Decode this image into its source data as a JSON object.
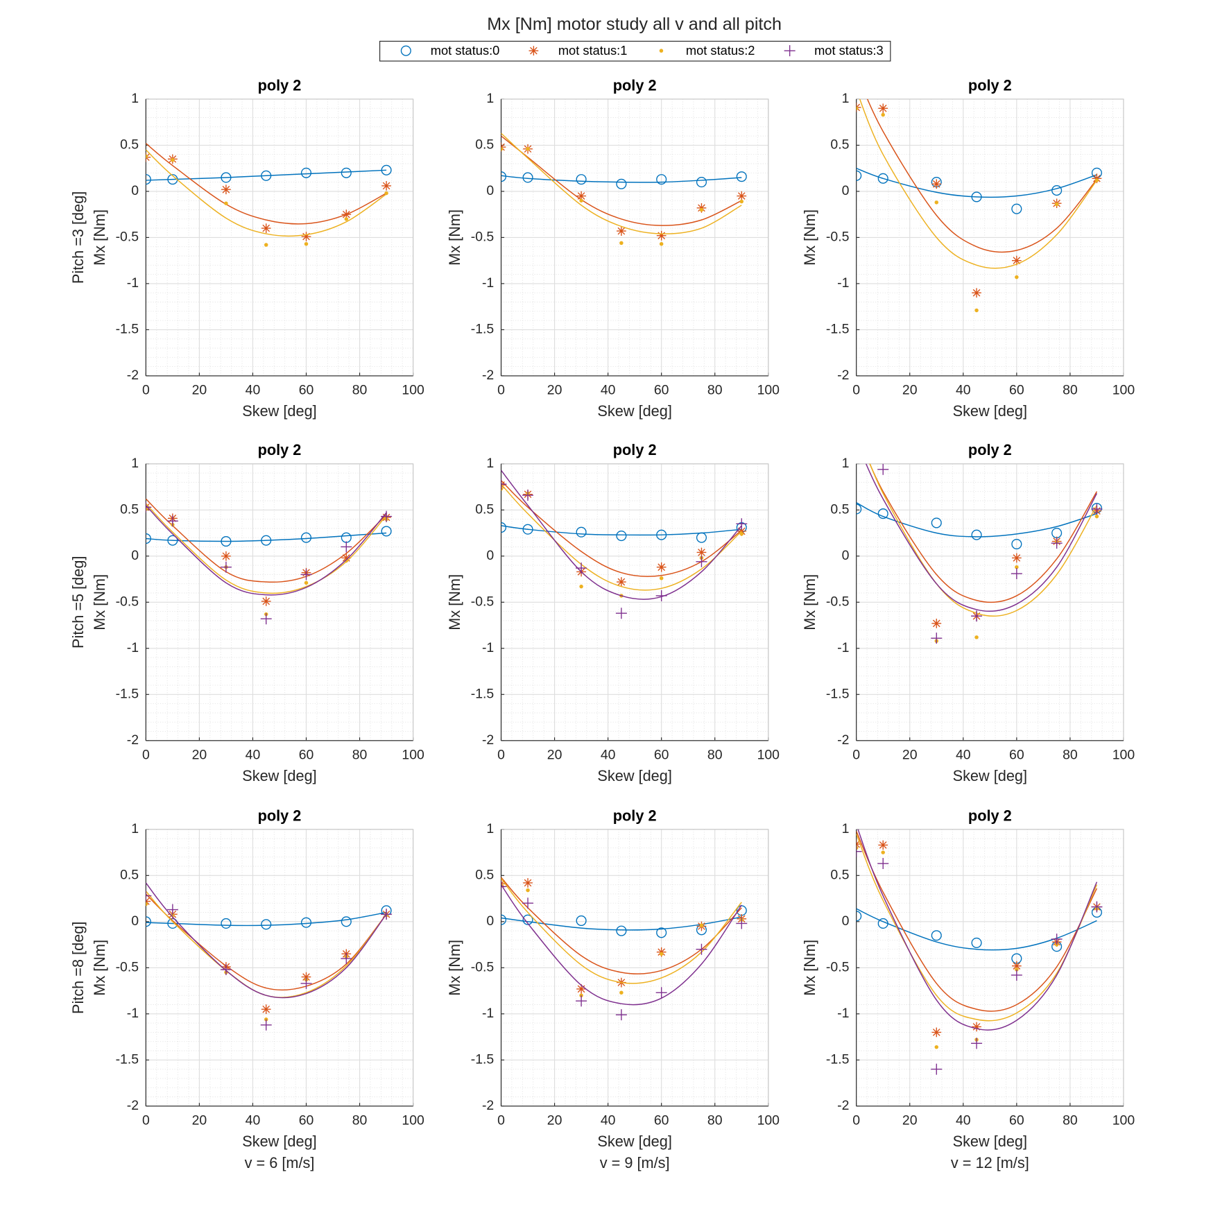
{
  "title": "Mx [Nm] motor study all v and all pitch",
  "legend": [
    {
      "name": "mot status:0",
      "color": "#0072bd",
      "marker": "o"
    },
    {
      "name": "mot status:1",
      "color": "#d95319",
      "marker": "*"
    },
    {
      "name": "mot status:2",
      "color": "#edb120",
      "marker": "."
    },
    {
      "name": "mot status:3",
      "color": "#7e2f8e",
      "marker": "+"
    }
  ],
  "chart_data": [
    {
      "type": "scatter",
      "title": "poly 2",
      "xlabel": "Skew [deg]",
      "ylabel": "Mx [Nm]",
      "row_label": "Pitch =3 [deg]",
      "xlim": [
        0,
        100
      ],
      "ylim": [
        -2,
        1
      ],
      "xticks": [
        0,
        20,
        40,
        60,
        80,
        100
      ],
      "yticks": [
        -2,
        -1.5,
        -1,
        -0.5,
        0,
        0.5,
        1
      ],
      "grid": true,
      "minor_grid": true,
      "x": [
        0,
        10,
        30,
        45,
        60,
        75,
        90
      ],
      "series": [
        {
          "values": [
            0.13,
            0.13,
            0.15,
            0.17,
            0.2,
            0.2,
            0.23
          ],
          "fit": [
            0.12,
            0.13,
            0.15,
            0.17,
            0.19,
            0.21,
            0.23
          ]
        },
        {
          "values": [
            0.37,
            0.35,
            0.02,
            -0.4,
            -0.49,
            -0.25,
            0.06
          ],
          "fit": [
            0.52,
            0.28,
            -0.14,
            -0.31,
            -0.35,
            -0.25,
            -0.02
          ]
        },
        {
          "values": [
            0.38,
            0.34,
            -0.13,
            -0.58,
            -0.57,
            -0.3,
            -0.02
          ],
          "fit": [
            0.45,
            0.17,
            -0.29,
            -0.46,
            -0.47,
            -0.33,
            -0.03
          ]
        }
      ]
    },
    {
      "type": "scatter",
      "title": "poly 2",
      "xlabel": "Skew [deg]",
      "ylabel": "Mx [Nm]",
      "xlim": [
        0,
        100
      ],
      "ylim": [
        -2,
        1
      ],
      "xticks": [
        0,
        20,
        40,
        60,
        80,
        100
      ],
      "yticks": [
        -2,
        -1.5,
        -1,
        -0.5,
        0,
        0.5,
        1
      ],
      "grid": true,
      "minor_grid": true,
      "x": [
        0,
        10,
        30,
        45,
        60,
        75,
        90
      ],
      "series": [
        {
          "values": [
            0.16,
            0.15,
            0.13,
            0.08,
            0.13,
            0.1,
            0.16
          ],
          "fit": [
            0.17,
            0.14,
            0.11,
            0.1,
            0.1,
            0.12,
            0.15
          ]
        },
        {
          "values": [
            0.48,
            0.46,
            -0.05,
            -0.43,
            -0.48,
            -0.18,
            -0.05
          ],
          "fit": [
            0.6,
            0.37,
            -0.09,
            -0.3,
            -0.37,
            -0.31,
            -0.1
          ]
        },
        {
          "values": [
            0.46,
            0.46,
            -0.1,
            -0.56,
            -0.57,
            -0.2,
            -0.11
          ],
          "fit": [
            0.63,
            0.36,
            -0.15,
            -0.38,
            -0.46,
            -0.4,
            -0.15
          ]
        }
      ]
    },
    {
      "type": "scatter",
      "title": "poly 2",
      "xlabel": "Skew [deg]",
      "ylabel": "Mx [Nm]",
      "xlim": [
        0,
        100
      ],
      "ylim": [
        -2,
        1
      ],
      "xticks": [
        0,
        20,
        40,
        60,
        80,
        100
      ],
      "yticks": [
        -2,
        -1.5,
        -1,
        -0.5,
        0,
        0.5,
        1
      ],
      "grid": true,
      "minor_grid": true,
      "x": [
        0,
        10,
        30,
        45,
        60,
        75,
        90
      ],
      "series": [
        {
          "values": [
            0.17,
            0.14,
            0.1,
            -0.06,
            -0.19,
            0.01,
            0.2
          ],
          "fit": [
            0.25,
            0.14,
            -0.01,
            -0.06,
            -0.05,
            0.03,
            0.18
          ]
        },
        {
          "values": [
            0.91,
            0.9,
            0.08,
            -1.1,
            -0.75,
            -0.13,
            0.14
          ],
          "fit": [
            1.29,
            0.65,
            -0.26,
            -0.6,
            -0.64,
            -0.4,
            0.13
          ]
        },
        {
          "values": [
            0.9,
            0.83,
            -0.12,
            -1.29,
            -0.93,
            -0.14,
            0.12
          ],
          "fit": [
            1.1,
            0.4,
            -0.5,
            -0.8,
            -0.79,
            -0.47,
            0.12
          ]
        }
      ]
    },
    {
      "type": "scatter",
      "title": "poly 2",
      "xlabel": "Skew [deg]",
      "ylabel": "Mx [Nm]",
      "row_label": "Pitch =5 [deg]",
      "xlim": [
        0,
        100
      ],
      "ylim": [
        -2,
        1
      ],
      "xticks": [
        0,
        20,
        40,
        60,
        80,
        100
      ],
      "yticks": [
        -2,
        -1.5,
        -1,
        -0.5,
        0,
        0.5,
        1
      ],
      "grid": true,
      "minor_grid": true,
      "x": [
        0,
        10,
        30,
        45,
        60,
        75,
        90
      ],
      "series": [
        {
          "values": [
            0.19,
            0.17,
            0.16,
            0.17,
            0.2,
            0.2,
            0.27
          ],
          "fit": [
            0.19,
            0.17,
            0.16,
            0.17,
            0.19,
            0.22,
            0.25
          ]
        },
        {
          "values": [
            0.53,
            0.41,
            0.0,
            -0.49,
            -0.18,
            -0.02,
            0.42
          ],
          "fit": [
            0.62,
            0.33,
            -0.17,
            -0.28,
            -0.22,
            0.03,
            0.45
          ]
        },
        {
          "values": [
            0.51,
            0.34,
            -0.12,
            -0.63,
            -0.29,
            -0.05,
            0.4
          ],
          "fit": [
            0.57,
            0.26,
            -0.26,
            -0.4,
            -0.33,
            -0.06,
            0.44
          ]
        },
        {
          "values": [
            0.53,
            0.38,
            -0.12,
            -0.68,
            -0.2,
            0.1,
            0.43
          ],
          "fit": [
            0.55,
            0.24,
            -0.29,
            -0.42,
            -0.34,
            -0.04,
            0.47
          ]
        }
      ]
    },
    {
      "type": "scatter",
      "title": "poly 2",
      "xlabel": "Skew [deg]",
      "ylabel": "Mx [Nm]",
      "xlim": [
        0,
        100
      ],
      "ylim": [
        -2,
        1
      ],
      "xticks": [
        0,
        20,
        40,
        60,
        80,
        100
      ],
      "yticks": [
        -2,
        -1.5,
        -1,
        -0.5,
        0,
        0.5,
        1
      ],
      "grid": true,
      "minor_grid": true,
      "x": [
        0,
        10,
        30,
        45,
        60,
        75,
        90
      ],
      "series": [
        {
          "values": [
            0.31,
            0.29,
            0.26,
            0.22,
            0.23,
            0.2,
            0.31
          ],
          "fit": [
            0.33,
            0.29,
            0.24,
            0.23,
            0.23,
            0.25,
            0.29
          ]
        },
        {
          "values": [
            0.77,
            0.67,
            -0.17,
            -0.28,
            -0.12,
            0.04,
            0.27
          ],
          "fit": [
            0.82,
            0.53,
            0.05,
            -0.18,
            -0.21,
            -0.06,
            0.28
          ]
        },
        {
          "values": [
            0.73,
            0.68,
            -0.33,
            -0.43,
            -0.24,
            -0.02,
            0.24
          ],
          "fit": [
            0.78,
            0.46,
            -0.09,
            -0.33,
            -0.35,
            -0.14,
            0.27
          ]
        },
        {
          "values": [
            0.78,
            0.66,
            -0.13,
            -0.62,
            -0.43,
            -0.06,
            0.35
          ],
          "fit": [
            0.93,
            0.55,
            -0.17,
            -0.43,
            -0.44,
            -0.17,
            0.33
          ]
        }
      ]
    },
    {
      "type": "scatter",
      "title": "poly 2",
      "xlabel": "Skew [deg]",
      "ylabel": "Mx [Nm]",
      "xlim": [
        0,
        100
      ],
      "ylim": [
        -2,
        1
      ],
      "xticks": [
        0,
        20,
        40,
        60,
        80,
        100
      ],
      "yticks": [
        -2,
        -1.5,
        -1,
        -0.5,
        0,
        0.5,
        1
      ],
      "grid": true,
      "minor_grid": true,
      "x": [
        0,
        10,
        30,
        45,
        60,
        75,
        90
      ],
      "series": [
        {
          "values": [
            0.51,
            0.46,
            0.36,
            0.23,
            0.13,
            0.25,
            0.52
          ],
          "fit": [
            0.58,
            0.43,
            0.25,
            0.21,
            0.24,
            0.32,
            0.46
          ]
        },
        {
          "values": [
            null,
            null,
            -0.73,
            -0.65,
            -0.02,
            0.16,
            0.49
          ],
          "fit": [
            1.37,
            0.7,
            -0.2,
            -0.48,
            -0.43,
            -0.03,
            0.7
          ]
        },
        {
          "values": [
            null,
            null,
            -0.92,
            -0.88,
            -0.12,
            0.15,
            0.43
          ],
          "fit": [
            1.4,
            0.68,
            -0.3,
            -0.62,
            -0.59,
            -0.2,
            0.55
          ]
        },
        {
          "values": [
            null,
            0.94,
            -0.89,
            -0.65,
            -0.19,
            0.14,
            0.51
          ],
          "fit": [
            1.25,
            0.62,
            -0.3,
            -0.58,
            -0.52,
            -0.12,
            0.68
          ]
        }
      ]
    },
    {
      "type": "scatter",
      "title": "poly 2",
      "xlabel": "Skew [deg]",
      "ylabel": "Mx [Nm]",
      "row_label": "Pitch =8 [deg]",
      "col_label": "v = 6 [m/s]",
      "xlim": [
        0,
        100
      ],
      "ylim": [
        -2,
        1
      ],
      "xticks": [
        0,
        20,
        40,
        60,
        80,
        100
      ],
      "yticks": [
        -2,
        -1.5,
        -1,
        -0.5,
        0,
        0.5,
        1
      ],
      "grid": true,
      "minor_grid": true,
      "x": [
        0,
        10,
        30,
        45,
        60,
        75,
        90
      ],
      "series": [
        {
          "values": [
            0.0,
            -0.02,
            -0.02,
            -0.03,
            -0.01,
            0.0,
            0.12
          ],
          "fit": [
            -0.01,
            -0.02,
            -0.04,
            -0.04,
            -0.02,
            0.02,
            0.1
          ]
        },
        {
          "values": [
            0.22,
            0.08,
            -0.49,
            -0.95,
            -0.6,
            -0.35,
            0.08
          ],
          "fit": [
            0.3,
            0.01,
            -0.48,
            -0.72,
            -0.7,
            -0.46,
            0.08
          ]
        },
        {
          "values": [
            0.19,
            0.07,
            -0.55,
            -1.06,
            -0.63,
            -0.38,
            0.07
          ],
          "fit": [
            0.33,
            0.0,
            -0.53,
            -0.8,
            -0.77,
            -0.48,
            0.08
          ]
        },
        {
          "values": [
            0.28,
            0.13,
            -0.52,
            -1.12,
            -0.67,
            -0.4,
            0.08
          ],
          "fit": [
            0.42,
            0.05,
            -0.53,
            -0.8,
            -0.78,
            -0.5,
            0.08
          ]
        }
      ]
    },
    {
      "type": "scatter",
      "title": "poly 2",
      "xlabel": "Skew [deg]",
      "ylabel": "Mx [Nm]",
      "col_label": "v = 9 [m/s]",
      "xlim": [
        0,
        100
      ],
      "ylim": [
        -2,
        1
      ],
      "xticks": [
        0,
        20,
        40,
        60,
        80,
        100
      ],
      "yticks": [
        -2,
        -1.5,
        -1,
        -0.5,
        0,
        0.5,
        1
      ],
      "grid": true,
      "minor_grid": true,
      "x": [
        0,
        10,
        30,
        45,
        60,
        75,
        90
      ],
      "series": [
        {
          "values": [
            0.02,
            0.02,
            0.01,
            -0.1,
            -0.12,
            -0.09,
            0.12
          ],
          "fit": [
            0.04,
            0.0,
            -0.07,
            -0.09,
            -0.08,
            -0.03,
            0.05
          ]
        },
        {
          "values": [
            0.41,
            0.42,
            -0.73,
            -0.66,
            -0.33,
            -0.05,
            0.03
          ],
          "fit": [
            0.48,
            0.15,
            -0.37,
            -0.55,
            -0.53,
            -0.3,
            0.15
          ]
        },
        {
          "values": [
            0.39,
            0.34,
            -0.8,
            -0.77,
            -0.35,
            -0.04,
            0.02
          ],
          "fit": [
            0.47,
            0.1,
            -0.47,
            -0.66,
            -0.61,
            -0.33,
            0.21
          ]
        },
        {
          "values": [
            0.38,
            0.2,
            -0.86,
            -1.01,
            -0.77,
            -0.3,
            -0.02
          ],
          "fit": [
            0.4,
            -0.02,
            -0.69,
            -0.89,
            -0.83,
            -0.46,
            0.18
          ]
        }
      ]
    },
    {
      "type": "scatter",
      "title": "poly 2",
      "xlabel": "Skew [deg]",
      "ylabel": "Mx [Nm]",
      "col_label": "v = 12 [m/s]",
      "xlim": [
        0,
        100
      ],
      "ylim": [
        -2,
        1
      ],
      "xticks": [
        0,
        20,
        40,
        60,
        80,
        100
      ],
      "yticks": [
        -2,
        -1.5,
        -1,
        -0.5,
        0,
        0.5,
        1
      ],
      "grid": true,
      "minor_grid": true,
      "x": [
        0,
        10,
        30,
        45,
        60,
        75,
        90
      ],
      "series": [
        {
          "values": [
            0.06,
            -0.02,
            -0.15,
            -0.23,
            -0.4,
            -0.27,
            0.1
          ],
          "fit": [
            0.14,
            0.0,
            -0.22,
            -0.3,
            -0.29,
            -0.18,
            0.01
          ]
        },
        {
          "values": [
            0.84,
            0.83,
            -1.2,
            -1.14,
            -0.48,
            -0.22,
            0.16
          ],
          "fit": [
            0.98,
            0.32,
            -0.67,
            -0.95,
            -0.9,
            -0.49,
            0.36
          ]
        },
        {
          "values": [
            0.8,
            0.75,
            -1.36,
            -1.28,
            -0.52,
            -0.25,
            0.14
          ],
          "fit": [
            0.95,
            0.23,
            -0.8,
            -1.06,
            -0.99,
            -0.56,
            0.4
          ]
        },
        {
          "values": [
            0.76,
            0.63,
            -1.6,
            -1.32,
            -0.58,
            -0.19,
            0.16
          ],
          "fit": [
            1.05,
            0.28,
            -0.85,
            -1.16,
            -1.07,
            -0.58,
            0.43
          ]
        }
      ]
    }
  ]
}
